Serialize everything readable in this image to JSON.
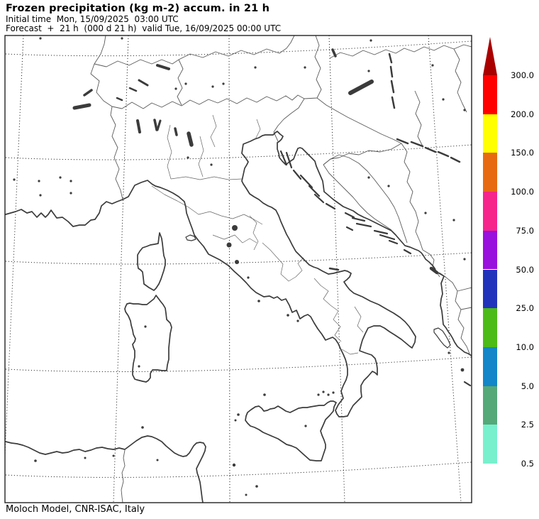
{
  "header": {
    "title": "Frozen precipitation (kg m-2) accum. in 21 h",
    "initial_time": "Initial time  Mon, 15/09/2025  03:00 UTC",
    "forecast_line": "Forecast  +  21 h  (000 d 21 h)  valid Tue, 16/09/2025 00:00 UTC"
  },
  "footer": {
    "credit": "Moloch Model, CNR-ISAC, Italy"
  },
  "chart_data": {
    "type": "map",
    "title": "Frozen precipitation (kg m-2) accum. in 21 h",
    "region": "Italy and central Mediterranean (Moloch model domain)",
    "units": "kg m-2",
    "accumulation_hours": 21,
    "initial_time": "Mon, 15/09/2025 03:00 UTC",
    "valid_time": "Tue, 16/09/2025 00:00 UTC",
    "forecast_lead": "+ 21 h (000 d 21 h)",
    "has_shaded_field": false,
    "graticule": "dotted lat/lon grid",
    "colorbar": {
      "orientation": "vertical",
      "position": "right",
      "levels": [
        0.5,
        2.5,
        5.0,
        10.0,
        25.0,
        50.0,
        75.0,
        100.0,
        150.0,
        200.0,
        300.0
      ],
      "tick_labels": [
        "0.5",
        "2.5",
        "5.0",
        "10.0",
        "25.0",
        "50.0",
        "75.0",
        "100.0",
        "150.0",
        "200.0",
        "300.0"
      ],
      "segment_colors_bottom_to_top": [
        "#78F0CD",
        "#55A878",
        "#1286C8",
        "#4CBB17",
        "#2233BB",
        "#9911DD",
        "#F5258C",
        "#E86A10",
        "#FFFF00",
        "#FF0000"
      ],
      "over_arrow_color": "#AA0000"
    },
    "line_colors": {
      "coastline": "#3b3b3b",
      "borders": "#5a5a5a",
      "graticule": "#111111",
      "frame": "#222222"
    }
  }
}
